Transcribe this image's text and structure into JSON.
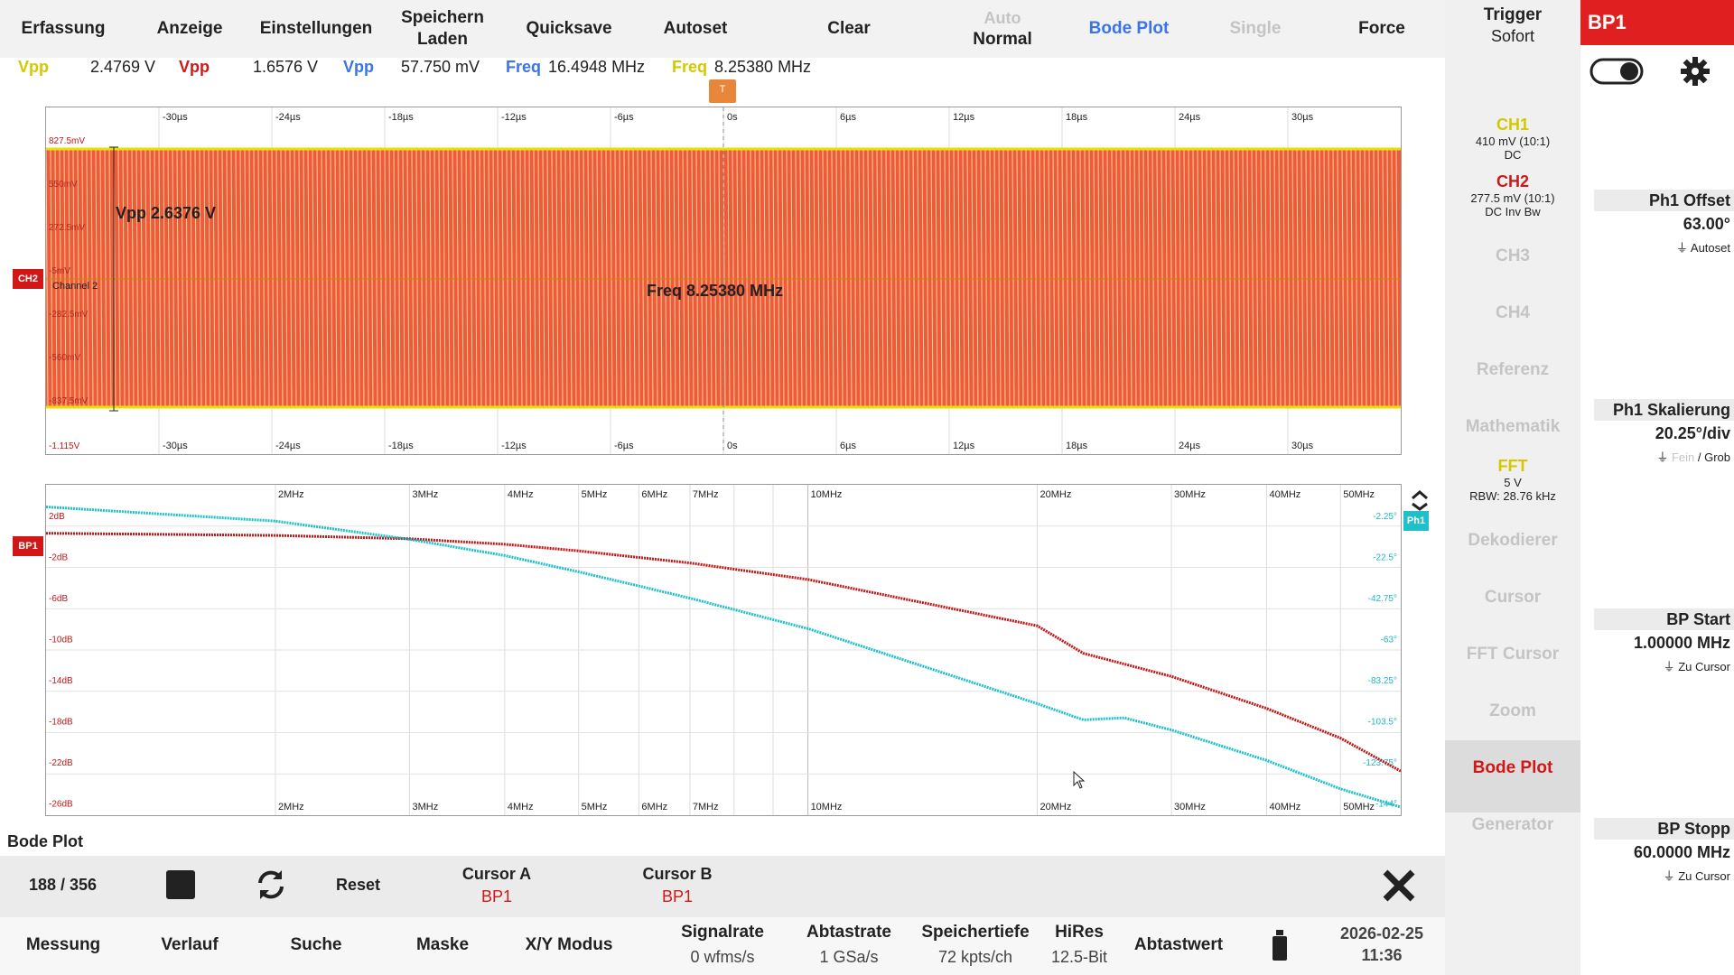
{
  "topmenu": {
    "erfassung": "Erfassung",
    "anzeige": "Anzeige",
    "einstellungen": "Einstellungen",
    "speichern_1": "Speichern",
    "speichern_2": "Laden",
    "quicksave": "Quicksave",
    "autoset": "Autoset",
    "clear": "Clear",
    "auto_top": "Auto",
    "auto_bottom": "Normal",
    "bodeplot": "Bode Plot",
    "single": "Single",
    "force": "Force"
  },
  "trigger": {
    "title": "Trigger",
    "mode": "Sofort"
  },
  "bp_tab": {
    "label": "BP1",
    "color": "#e02020"
  },
  "measurements": {
    "m1_label": "Vpp",
    "m1_value": "2.4769 V",
    "m2_label": "Vpp",
    "m2_value": "1.6576 V",
    "m3_label": "Vpp",
    "m3_value": "57.750 mV",
    "m4_label": "Freq",
    "m4_value": "16.4948 MHz",
    "m5_label": "Freq",
    "m5_value": "8.25380 MHz"
  },
  "channels": {
    "ch1": {
      "name": "CH1",
      "scale": "410 mV (10:1)",
      "coupling": "DC",
      "color": "#d4c800"
    },
    "ch2": {
      "name": "CH2",
      "scale": "277.5 mV (10:1)",
      "coupling": "DC Inv Bw",
      "color": "#d01818"
    },
    "ch3": "CH3",
    "ch4": "CH4",
    "referenz": "Referenz",
    "mathematik": "Mathematik",
    "fft": {
      "name": "FFT",
      "scale": "5 V",
      "rbw": "RBW: 28.76 kHz"
    },
    "dekodierer": "Dekodierer",
    "cursor": "Cursor",
    "fftcursor": "FFT Cursor",
    "zoom": "Zoom",
    "bodeplot": "Bode Plot",
    "generator": "Generator"
  },
  "side_panel": {
    "ph1_offset_title": "Ph1 Offset",
    "ph1_offset_value": "63.00°",
    "ph1_offset_sub": "Autoset",
    "ph1_scale_title": "Ph1 Skalierung",
    "ph1_scale_value": "20.25°/div",
    "ph1_scale_sub_a": "Fein",
    "ph1_scale_sub_b": " / Grob",
    "bp_start_title": "BP Start",
    "bp_start_value": "1.00000 MHz",
    "bp_start_sub": "Zu Cursor",
    "bp_stop_title": "BP Stopp",
    "bp_stop_value": "60.0000 MHz",
    "bp_stop_sub": "Zu Cursor"
  },
  "time_plot": {
    "x_ticks": [
      "-30µs",
      "-24µs",
      "-18µs",
      "-12µs",
      "-6µs",
      "0s",
      "6µs",
      "12µs",
      "18µs",
      "24µs",
      "30µs"
    ],
    "y_top": "827.5mV",
    "y_labels": [
      "550mV",
      "272.5mV",
      "-5mV",
      "-282.5mV",
      "-560mV",
      "-837.5mV"
    ],
    "y_bottom": "-1.115V",
    "ch2_marker": "CH2",
    "channel2_label": "Channel 2",
    "vpp_overlay": "Vpp 2.6376 V",
    "freq_overlay": "Freq 8.25380 MHz",
    "trigger_marker": "T"
  },
  "bode_plot": {
    "x_ticks": [
      "2MHz",
      "3MHz",
      "4MHz",
      "5MHz",
      "6MHz",
      "7MHz",
      "10MHz",
      "20MHz",
      "30MHz",
      "40MHz",
      "50MHz"
    ],
    "gain_labels": [
      "2dB",
      "-2dB",
      "-6dB",
      "-10dB",
      "-14dB",
      "-18dB",
      "-22dB",
      "-26dB"
    ],
    "phase_labels": [
      "-2.25°",
      "-22.5°",
      "-42.75°",
      "-63°",
      "-83.25°",
      "-103.5°",
      "-123.75°",
      "-144°"
    ],
    "bp1_marker": "BP1",
    "ph1_marker": "Ph1",
    "gain_color": "#c01818",
    "phase_color": "#20c0c8"
  },
  "bode_bar": {
    "title": "Bode Plot",
    "progress": "188 / 356",
    "reset": "Reset",
    "cursor_a": "Cursor A",
    "cursor_a_src": "BP1",
    "cursor_b": "Cursor B",
    "cursor_b_src": "BP1"
  },
  "bottom": {
    "messung": "Messung",
    "verlauf": "Verlauf",
    "suche": "Suche",
    "maske": "Maske",
    "xy": "X/Y Modus",
    "signalrate_t": "Signalrate",
    "signalrate_v": "0 wfms/s",
    "abtastrate_t": "Abtastrate",
    "abtastrate_v": "1 GSa/s",
    "speicher_t": "Speichertiefe",
    "speicher_v": "72 kpts/ch",
    "hires_t": "HiRes",
    "hires_v": "12.5-Bit",
    "abtastwert": "Abtastwert",
    "date": "2026-02-25",
    "time": "11:36"
  }
}
